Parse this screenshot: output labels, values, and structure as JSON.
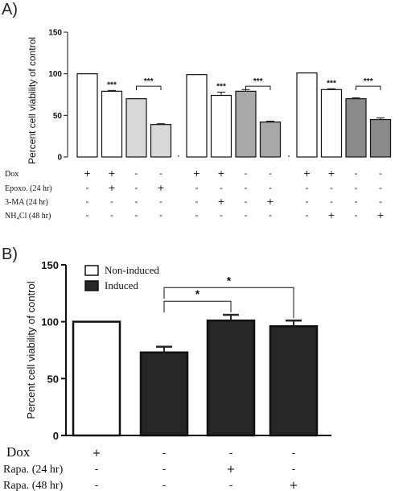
{
  "panel_a": {
    "letter": "A)",
    "chart_data": {
      "type": "bar",
      "ylabel": "Percent cell viability of control",
      "ylim": [
        0,
        150
      ],
      "yticks": [
        0,
        50,
        100,
        150
      ],
      "groups": [
        {
          "values": [
            100,
            79,
            70,
            39
          ],
          "errors": [
            0,
            1,
            0,
            1
          ],
          "fills": [
            "#ffffff",
            "#ffffff",
            "#d8d8d8",
            "#d8d8d8"
          ],
          "sig": [
            {
              "from": 0,
              "to": 1,
              "label": "***",
              "y": 85
            },
            {
              "from": 2,
              "to": 3,
              "label": "***",
              "y": 85
            }
          ]
        },
        {
          "values": [
            99,
            74,
            79,
            42
          ],
          "errors": [
            0,
            4,
            2,
            1
          ],
          "fills": [
            "#ffffff",
            "#ffffff",
            "#a8a8a8",
            "#a8a8a8"
          ],
          "sig": [
            {
              "from": 0,
              "to": 1,
              "label": "***",
              "y": 85
            },
            {
              "from": 2,
              "to": 3,
              "label": "***",
              "y": 85
            }
          ]
        },
        {
          "values": [
            101,
            81,
            70,
            45
          ],
          "errors": [
            0,
            1,
            1,
            2
          ],
          "fills": [
            "#ffffff",
            "#ffffff",
            "#8a8a8a",
            "#8a8a8a"
          ],
          "sig": [
            {
              "from": 0,
              "to": 1,
              "label": "***",
              "y": 85
            },
            {
              "from": 2,
              "to": 3,
              "label": "***",
              "y": 85
            }
          ]
        }
      ],
      "treatments": [
        {
          "label": "Dox",
          "rows": [
            [
              "+",
              "+",
              "-",
              "-"
            ],
            [
              "+",
              "+",
              "-",
              "-"
            ],
            [
              "+",
              "+",
              "-",
              "-"
            ]
          ]
        },
        {
          "label": "Epoxo. (24 hr)",
          "rows": [
            [
              "-",
              "+",
              "-",
              "+"
            ],
            [
              "-",
              "-",
              "-",
              "-"
            ],
            [
              "-",
              "-",
              "-",
              "-"
            ]
          ]
        },
        {
          "label": "3-MA  (24 hr)",
          "rows": [
            [
              "-",
              "-",
              "-",
              "-"
            ],
            [
              "-",
              "+",
              "-",
              "+"
            ],
            [
              "-",
              "-",
              "-",
              "-"
            ]
          ]
        },
        {
          "label": "NH₄Cl (48 hr)",
          "rows": [
            [
              "-",
              "-",
              "-",
              "-"
            ],
            [
              "-",
              "-",
              "-",
              "-"
            ],
            [
              "-",
              "+",
              "-",
              "+"
            ]
          ]
        }
      ]
    }
  },
  "panel_b": {
    "letter": "B)",
    "chart_data": {
      "type": "bar",
      "ylabel": "Percent cell viability of control",
      "ylim": [
        0,
        150
      ],
      "yticks": [
        0,
        50,
        100,
        150
      ],
      "values": [
        100,
        73,
        101,
        96
      ],
      "errors": [
        0,
        5,
        5,
        5
      ],
      "fills": [
        "#ffffff",
        "#262626",
        "#262626",
        "#262626"
      ],
      "legend": [
        {
          "name": "Non-induced",
          "color": "#ffffff"
        },
        {
          "name": "Induced",
          "color": "#262626"
        }
      ],
      "sig": [
        {
          "from": 1,
          "to": 2,
          "label": "*",
          "y": 118
        },
        {
          "from": 1,
          "to": 3,
          "label": "*",
          "y": 130
        }
      ],
      "treatments": [
        {
          "label": "Dox",
          "values": [
            "+",
            "-",
            "-",
            "-"
          ]
        },
        {
          "label": "Rapa. (24 hr)",
          "values": [
            "-",
            "-",
            "+",
            "-"
          ]
        },
        {
          "label": "Rapa. (48 hr)",
          "values": [
            "-",
            "-",
            "-",
            "+"
          ]
        }
      ]
    }
  }
}
